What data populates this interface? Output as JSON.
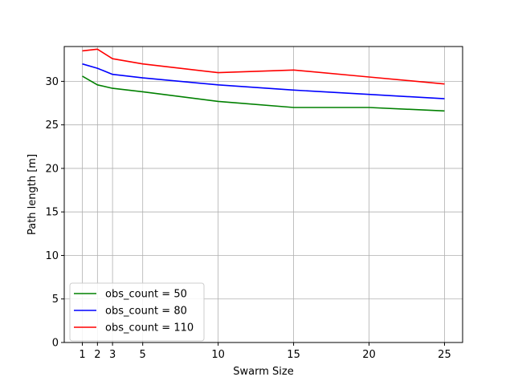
{
  "chart_data": {
    "type": "line",
    "title": "",
    "xlabel": "Swarm Size",
    "ylabel": "Path length [m]",
    "x": [
      1,
      2,
      3,
      5,
      10,
      15,
      20,
      25
    ],
    "xticks": [
      1,
      2,
      3,
      5,
      10,
      15,
      20,
      25
    ],
    "yticks": [
      0,
      5,
      10,
      15,
      20,
      25,
      30
    ],
    "xlim": [
      -0.2,
      26.2
    ],
    "ylim": [
      0,
      34
    ],
    "grid": true,
    "legend_position": "lower-left",
    "series": [
      {
        "name": "obs_count = 50",
        "color": "#008000",
        "values": [
          30.6,
          29.6,
          29.2,
          28.8,
          27.7,
          27.0,
          27.0,
          26.6
        ]
      },
      {
        "name": "obs_count = 80",
        "color": "#0000ff",
        "values": [
          32.0,
          31.5,
          30.8,
          30.4,
          29.6,
          29.0,
          28.5,
          28.0
        ]
      },
      {
        "name": "obs_count = 110",
        "color": "#ff0000",
        "values": [
          33.5,
          33.7,
          32.6,
          32.0,
          31.0,
          31.3,
          30.5,
          29.7
        ]
      }
    ]
  }
}
